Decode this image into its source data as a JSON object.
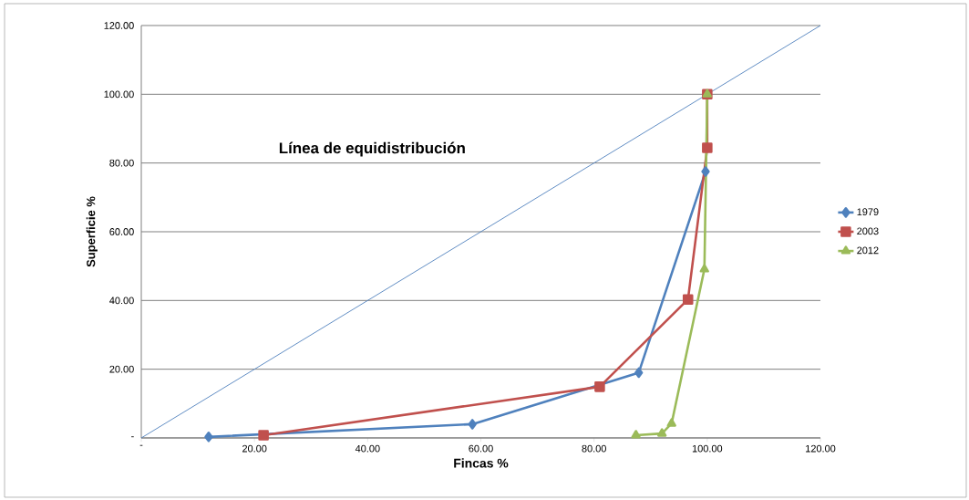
{
  "chart_data": {
    "type": "line",
    "xlabel": "Fincas %",
    "ylabel": "Superficie %",
    "annotations": [
      "Línea de equidistribución"
    ],
    "xlim": [
      0,
      120
    ],
    "ylim": [
      0,
      120
    ],
    "xticks": [
      {
        "value": 0,
        "label": "-"
      },
      {
        "value": 20,
        "label": "20.00"
      },
      {
        "value": 40,
        "label": "40.00"
      },
      {
        "value": 60,
        "label": "60.00"
      },
      {
        "value": 80,
        "label": "80.00"
      },
      {
        "value": 100,
        "label": "100.00"
      },
      {
        "value": 120,
        "label": "120.00"
      }
    ],
    "yticks": [
      {
        "value": 0,
        "label": "-"
      },
      {
        "value": 20,
        "label": "20.00"
      },
      {
        "value": 40,
        "label": "40.00"
      },
      {
        "value": 60,
        "label": "60.00"
      },
      {
        "value": 80,
        "label": "80.00"
      },
      {
        "value": 100,
        "label": "100.00"
      },
      {
        "value": 120,
        "label": "120.00"
      }
    ],
    "grid": "y",
    "legend": "right",
    "series": [
      {
        "x": [
          0,
          120
        ],
        "values": [
          0,
          120
        ],
        "color": "#4f81bd",
        "marker": "none"
      },
      {
        "name": "1979",
        "color": "#4f81bd",
        "marker": "diamond",
        "x": [
          11.9,
          58.5,
          87.9,
          99.7
        ],
        "values": [
          0.3,
          4.0,
          19.0,
          77.5
        ]
      },
      {
        "name": "2003",
        "color": "#c0504d",
        "marker": "square",
        "x": [
          21.6,
          81.0,
          96.6,
          100,
          100
        ],
        "values": [
          0.8,
          14.9,
          40.3,
          84.4,
          100
        ]
      },
      {
        "name": "2012",
        "color": "#9bbb59",
        "marker": "triangle",
        "x": [
          87.4,
          92.0,
          93.7,
          99.5,
          100
        ],
        "values": [
          0.8,
          1.3,
          4.2,
          49.1,
          100
        ]
      }
    ]
  }
}
